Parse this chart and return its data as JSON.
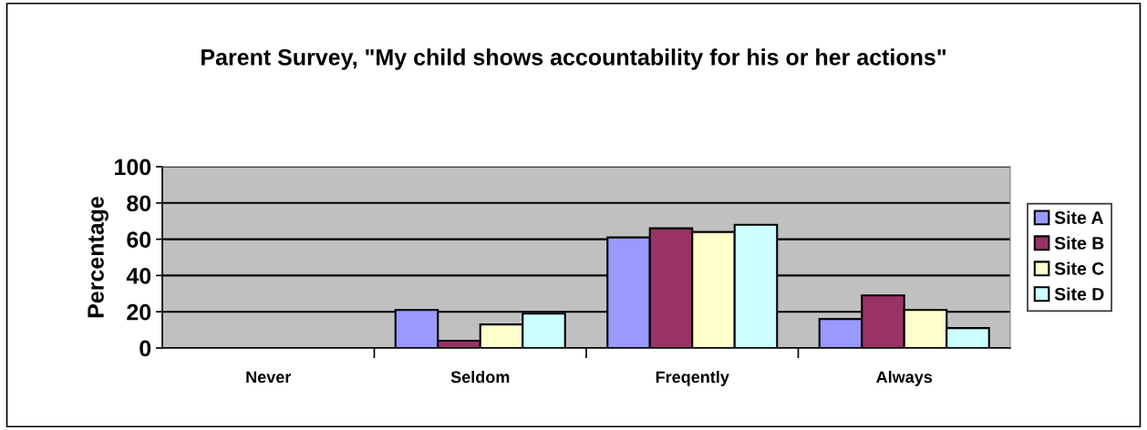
{
  "chart_data": {
    "type": "bar",
    "title": "Parent Survey, \"My child shows accountability for his or her actions\"",
    "ylabel": "Percentage",
    "categories": [
      "Never",
      "Seldom",
      "Freqently",
      "Always"
    ],
    "series": [
      {
        "name": "Site A",
        "color": "#9999ff",
        "values": [
          null,
          21,
          61,
          16
        ]
      },
      {
        "name": "Site B",
        "color": "#993366",
        "values": [
          null,
          4,
          66,
          29
        ]
      },
      {
        "name": "Site C",
        "color": "#ffffcc",
        "values": [
          null,
          13,
          64,
          21
        ]
      },
      {
        "name": "Site D",
        "color": "#ccffff",
        "values": [
          null,
          19,
          68,
          11
        ]
      }
    ],
    "ylim": [
      0,
      100
    ],
    "yticks": [
      0,
      20,
      40,
      60,
      80,
      100
    ],
    "grid": "y",
    "legend": "right"
  }
}
